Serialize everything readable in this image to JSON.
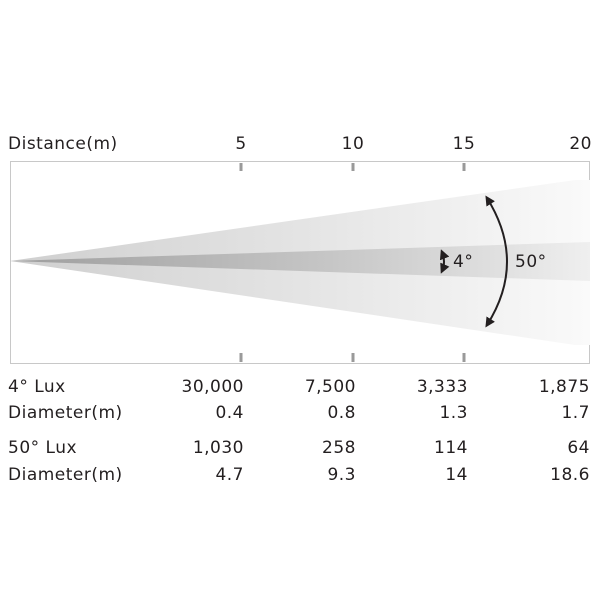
{
  "distance_label": "Distance(m)",
  "distance_ticks": [
    "5",
    "10",
    "15",
    "20"
  ],
  "angles": {
    "narrow": "4°",
    "wide": "50°"
  },
  "rows": [
    {
      "label": "4° Lux",
      "values": [
        "30,000",
        "7,500",
        "3,333",
        "1,875"
      ]
    },
    {
      "label": "Diameter(m)",
      "values": [
        "0.4",
        "0.8",
        "1.3",
        "1.7"
      ]
    },
    {
      "label": "50° Lux",
      "values": [
        "1,030",
        "258",
        "114",
        "64"
      ]
    },
    {
      "label": "Diameter(m)",
      "values": [
        "4.7",
        "9.3",
        "14",
        "18.6"
      ]
    }
  ]
}
